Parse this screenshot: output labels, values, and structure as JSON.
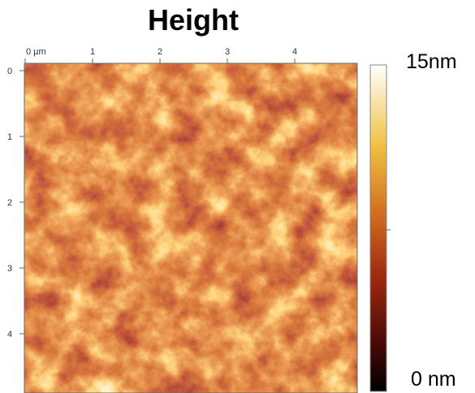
{
  "title": "Height",
  "x_axis": {
    "ticks": [
      "0 µm",
      "1",
      "2",
      "3",
      "4"
    ]
  },
  "y_axis": {
    "ticks": [
      "0",
      "1",
      "2",
      "3",
      "4"
    ]
  },
  "colorbar": {
    "max_label": "15nm",
    "min_label": "0 nm"
  }
}
